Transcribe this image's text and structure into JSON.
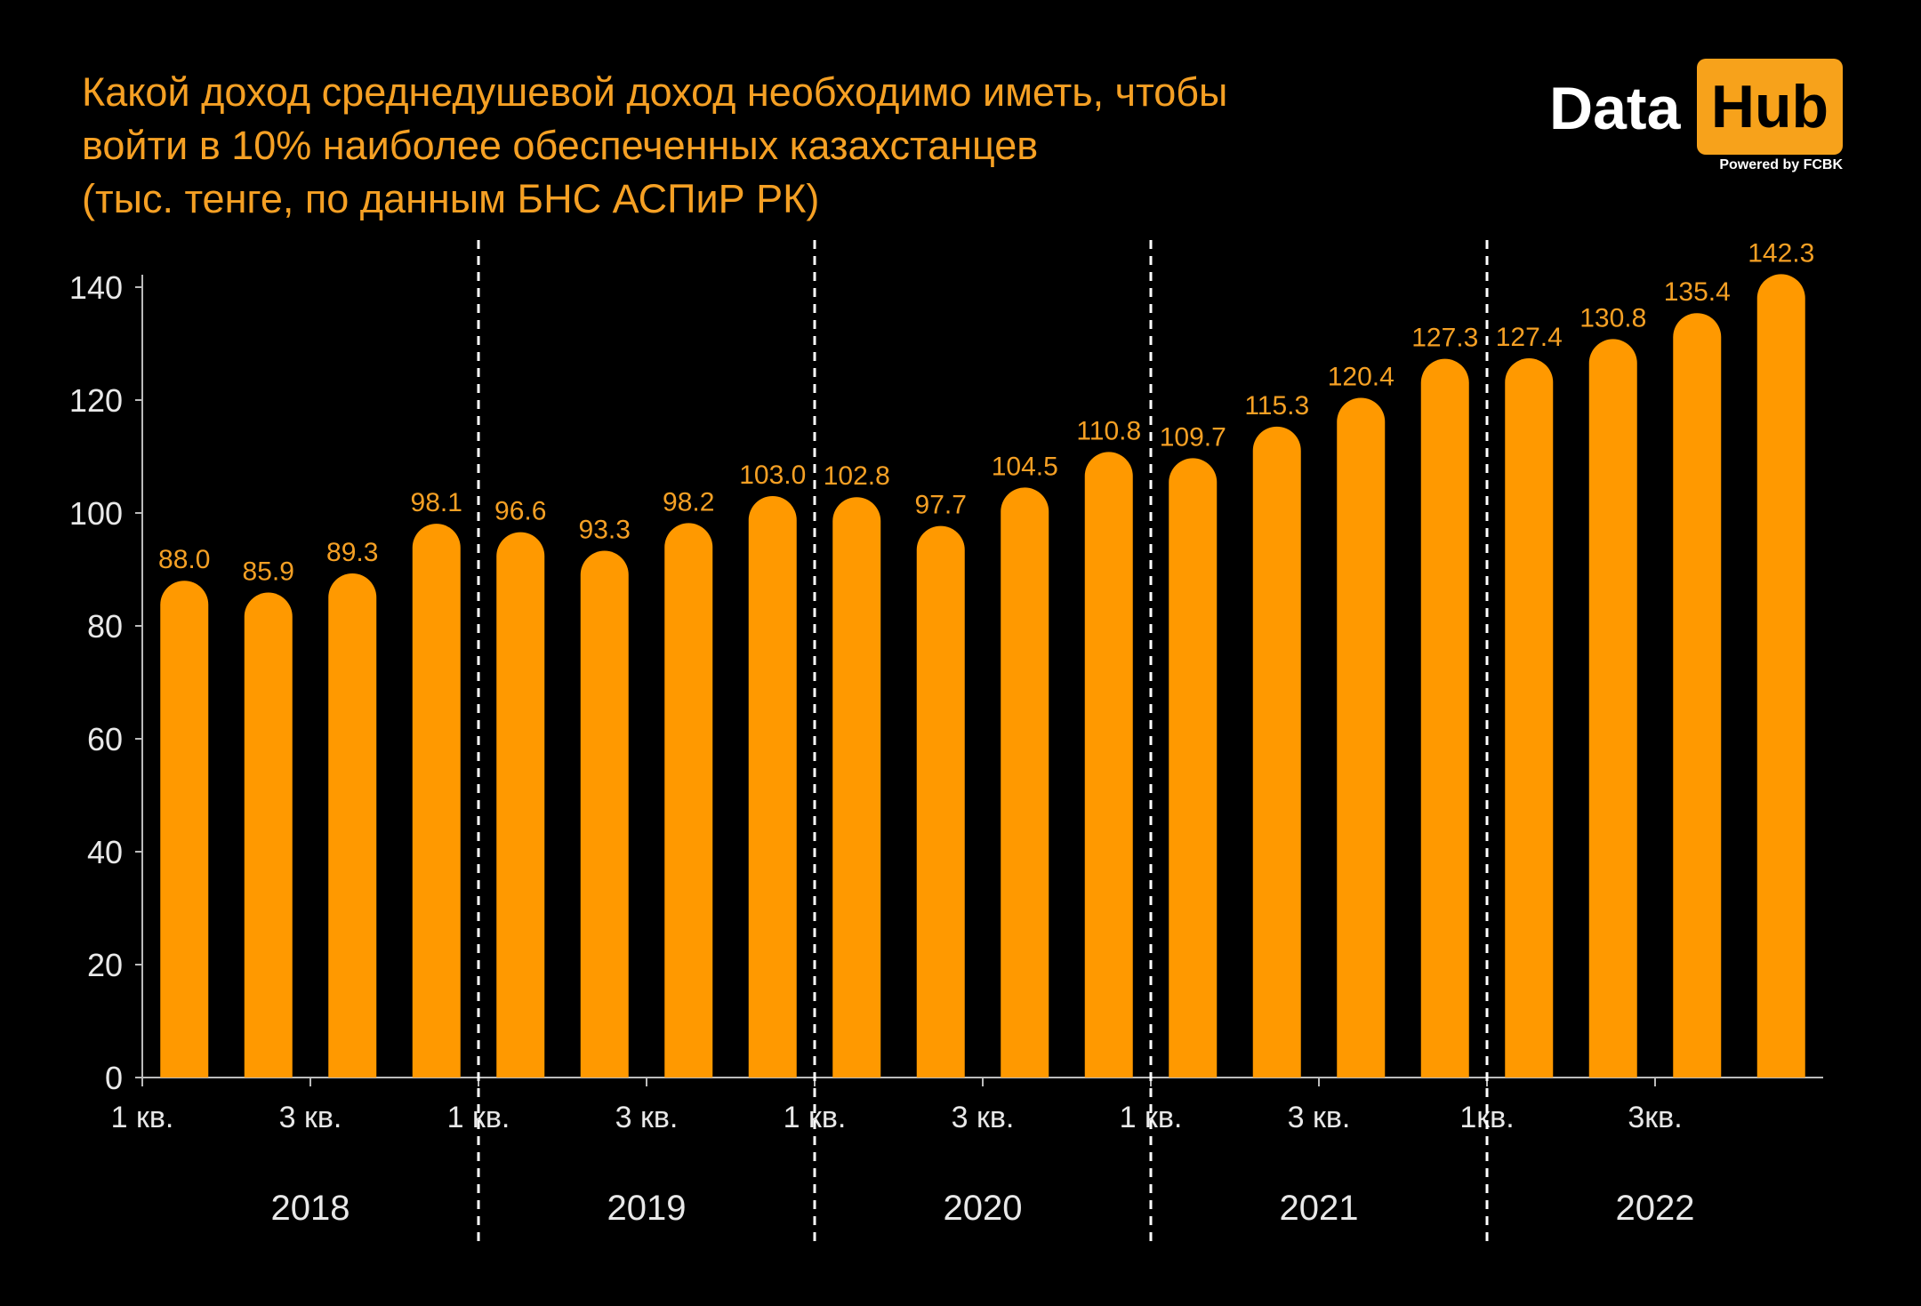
{
  "title_lines": [
    "Какой доход среднедушевой доход необходимо иметь, чтобы",
    "войти в 10% наиболее обеспеченных казахстанцев",
    "(тыс. тенге, по данным БНС АСПиР РК)"
  ],
  "logo": {
    "data": "Data",
    "hub": "Hub",
    "powered": "Powered by FCBK"
  },
  "colors": {
    "bar": "#ff9900",
    "label": "#f5a024",
    "background": "#000000",
    "axis": "#bbbbbb",
    "text": "#e8e8e8"
  },
  "chart_data": {
    "type": "bar",
    "title": "Какой доход среднедушевой доход необходимо иметь, чтобы войти в 10% наиболее обеспеченных казахстанцев (тыс. тенге, по данным БНС АСПиР РК)",
    "categories": [
      "2018 Q1",
      "2018 Q2",
      "2018 Q3",
      "2018 Q4",
      "2019 Q1",
      "2019 Q2",
      "2019 Q3",
      "2019 Q4",
      "2020 Q1",
      "2020 Q2",
      "2020 Q3",
      "2020 Q4",
      "2021 Q1",
      "2021 Q2",
      "2021 Q3",
      "2021 Q4",
      "2022 Q1",
      "2022 Q2",
      "2022 Q3",
      "2022 Q4"
    ],
    "values": [
      88.0,
      85.9,
      89.3,
      98.1,
      96.6,
      93.3,
      98.2,
      103.0,
      102.8,
      97.7,
      104.5,
      110.8,
      109.7,
      115.3,
      120.4,
      127.3,
      127.4,
      130.8,
      135.4,
      142.3
    ],
    "value_labels": [
      "88.0",
      "85.9",
      "89.3",
      "98.1",
      "96.6",
      "93.3",
      "98.2",
      "103.0",
      "102.8",
      "97.7",
      "104.5",
      "110.8",
      "109.7",
      "115.3",
      "120.4",
      "127.3",
      "127.4",
      "130.8",
      "135.4",
      "142.3"
    ],
    "ylim": [
      0,
      140
    ],
    "yticks": [
      0,
      20,
      40,
      60,
      80,
      100,
      120,
      140
    ],
    "x_tick_labels": [
      {
        "index": 0,
        "text": "1 кв."
      },
      {
        "index": 2,
        "text": "3 кв."
      },
      {
        "index": 4,
        "text": "1 кв."
      },
      {
        "index": 6,
        "text": "3 кв."
      },
      {
        "index": 8,
        "text": "1 кв."
      },
      {
        "index": 10,
        "text": "3 кв."
      },
      {
        "index": 12,
        "text": "1 кв."
      },
      {
        "index": 14,
        "text": "3 кв."
      },
      {
        "index": 16,
        "text": "1кв."
      },
      {
        "index": 18,
        "text": "3кв."
      }
    ],
    "groups": [
      {
        "label": "2018",
        "start": 0,
        "end": 3
      },
      {
        "label": "2019",
        "start": 4,
        "end": 7
      },
      {
        "label": "2020",
        "start": 8,
        "end": 11
      },
      {
        "label": "2021",
        "start": 12,
        "end": 15
      },
      {
        "label": "2022",
        "start": 16,
        "end": 19
      }
    ],
    "grid": false,
    "legend": "none"
  }
}
